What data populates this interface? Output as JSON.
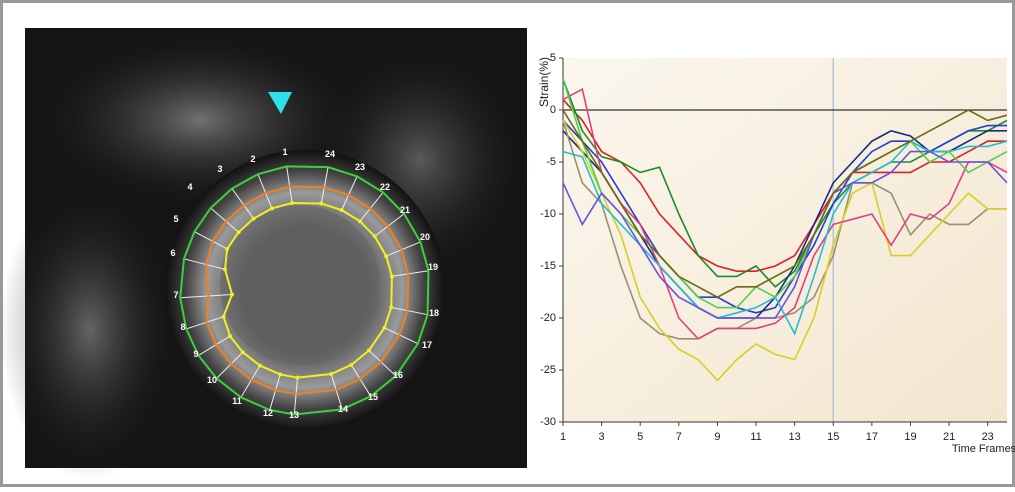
{
  "image": {
    "segment_labels": [
      "1",
      "2",
      "3",
      "4",
      "5",
      "6",
      "7",
      "8",
      "9",
      "10",
      "11",
      "12",
      "13",
      "14",
      "15",
      "16",
      "17",
      "18",
      "19",
      "20",
      "21",
      "22",
      "23",
      "24"
    ]
  },
  "chart_data": {
    "type": "line",
    "y_label": "Strain(%)",
    "x_label": "Time Frames",
    "x": [
      1,
      2,
      3,
      4,
      5,
      6,
      7,
      8,
      9,
      10,
      11,
      12,
      13,
      14,
      15,
      16,
      17,
      18,
      19,
      20,
      21,
      22,
      23,
      24
    ],
    "xlim": [
      1,
      24
    ],
    "xticks": [
      1,
      3,
      5,
      7,
      9,
      11,
      13,
      15,
      17,
      19,
      21,
      23
    ],
    "ylim": [
      -30,
      5
    ],
    "yticks": [
      -30,
      -25,
      -20,
      -15,
      -10,
      -5,
      0,
      5
    ],
    "series": [
      {
        "color": "#e02020",
        "values": [
          1,
          -1,
          -4,
          -5,
          -7,
          -10,
          -12,
          -14,
          -15,
          -15.5,
          -15.5,
          -15,
          -14,
          -11,
          -8,
          -6,
          -6,
          -6,
          -6,
          -5,
          -5,
          -4,
          -3,
          -3
        ]
      },
      {
        "color": "#1e8a2a",
        "values": [
          3,
          -2,
          -4.5,
          -5,
          -6,
          -5.5,
          -10,
          -14,
          -16,
          -16,
          -15,
          -17,
          -15.5,
          -12,
          -9,
          -7,
          -6,
          -5,
          -5,
          -4,
          -3,
          -2,
          -2,
          -1
        ]
      },
      {
        "color": "#2040d0",
        "values": [
          -1,
          -3,
          -5,
          -8,
          -11,
          -14,
          -16,
          -18,
          -18,
          -19,
          -19.5,
          -19,
          -16,
          -13,
          -9,
          -6,
          -4,
          -3,
          -3,
          -4,
          -3,
          -2,
          -1.5,
          -1.5
        ]
      },
      {
        "color": "#1a2a80",
        "values": [
          -2,
          -4,
          -6,
          -9,
          -12,
          -15,
          -17,
          -19,
          -20,
          -20,
          -20,
          -18,
          -15,
          -11,
          -7,
          -5,
          -3,
          -2,
          -2.5,
          -4,
          -4,
          -3,
          -2,
          -2
        ]
      },
      {
        "color": "#9a9070",
        "values": [
          -1,
          -7,
          -9,
          -15,
          -20,
          -21.5,
          -22,
          -22,
          -21,
          -21,
          -20,
          -20,
          -19.5,
          -18,
          -14,
          -7,
          -7,
          -8,
          -12,
          -10,
          -11,
          -11,
          -9.5,
          -9.5
        ]
      },
      {
        "color": "#d8d020",
        "values": [
          -1,
          -4,
          -8,
          -12,
          -18,
          -21,
          -23,
          -24,
          -26,
          -24,
          -22.5,
          -23.5,
          -24,
          -20,
          -13,
          -8,
          -7,
          -14,
          -14,
          -12,
          -10,
          -8,
          -9.5,
          -9.5
        ]
      },
      {
        "color": "#e04080",
        "values": [
          1,
          2,
          -6,
          -9,
          -11,
          -15,
          -20,
          -22,
          -21,
          -21,
          -21,
          -20.5,
          -19,
          -14,
          -11,
          -10.5,
          -10,
          -13,
          -10,
          -10.5,
          -9,
          -5,
          -5,
          -6
        ]
      },
      {
        "color": "#20c0d0",
        "values": [
          -4,
          -4.5,
          -9,
          -11,
          -13,
          -15,
          -17,
          -19,
          -20,
          -19.5,
          -19,
          -18,
          -21.5,
          -16,
          -10,
          -7,
          -6,
          -5,
          -3,
          -4,
          -4,
          -3.5,
          -3.5,
          -3
        ]
      },
      {
        "color": "#50d050",
        "values": [
          3,
          -3,
          -8,
          -10,
          -12,
          -14,
          -16,
          -18,
          -19,
          -19,
          -17,
          -18,
          -16,
          -12,
          -8,
          -6,
          -5,
          -4,
          -3,
          -5,
          -4,
          -6,
          -5,
          -4
        ]
      },
      {
        "color": "#6a50e0",
        "values": [
          -7,
          -11,
          -8,
          -10,
          -13,
          -16,
          -18,
          -19,
          -20,
          -20,
          -20,
          -20,
          -17,
          -12,
          -8,
          -7,
          -7,
          -6,
          -4,
          -4,
          -5,
          -5,
          -5,
          -7
        ]
      },
      {
        "color": "#6a6a10",
        "values": [
          0,
          -3,
          -6,
          -9,
          -12,
          -14,
          -16,
          -17,
          -18,
          -17,
          -17,
          -16,
          -15,
          -12,
          -8,
          -6,
          -5,
          -4,
          -3,
          -2,
          -1,
          0,
          -1,
          -0.5
        ]
      }
    ]
  }
}
